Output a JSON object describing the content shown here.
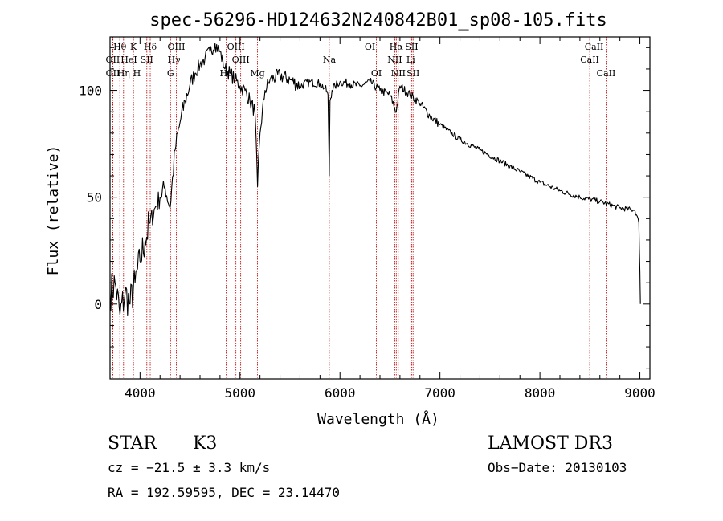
{
  "chart_data": {
    "type": "line",
    "title": "spec-56296-HD124632N240842B01_sp08-105.fits",
    "xlabel": "Wavelength (Å)",
    "ylabel": "Flux (relative)",
    "xlim": [
      3700,
      9100
    ],
    "ylim": [
      -35,
      125
    ],
    "x_ticks": [
      4000,
      5000,
      6000,
      7000,
      8000,
      9000
    ],
    "y_ticks": [
      0,
      50,
      100
    ],
    "x_tick_labels": [
      "4000",
      "5000",
      "6000",
      "7000",
      "8000",
      "9000"
    ],
    "y_tick_labels": [
      "0",
      "50",
      "100"
    ],
    "series": [
      {
        "name": "flux",
        "x": [
          3700,
          3750,
          3800,
          3850,
          3900,
          3950,
          4000,
          4050,
          4100,
          4150,
          4200,
          4250,
          4300,
          4350,
          4400,
          4450,
          4500,
          4550,
          4600,
          4650,
          4700,
          4750,
          4800,
          4850,
          4900,
          4950,
          5000,
          5050,
          5100,
          5150,
          5175,
          5200,
          5250,
          5300,
          5400,
          5500,
          5600,
          5700,
          5800,
          5850,
          5880,
          5893,
          5900,
          5920,
          5950,
          6000,
          6100,
          6200,
          6300,
          6400,
          6500,
          6563,
          6600,
          6700,
          6800,
          6900,
          7000,
          7200,
          7400,
          7600,
          7800,
          8000,
          8200,
          8400,
          8600,
          8800,
          8950,
          8990,
          9000,
          9005
        ],
        "y": [
          5,
          10,
          -5,
          5,
          0,
          10,
          20,
          30,
          38,
          45,
          50,
          55,
          45,
          72,
          85,
          95,
          103,
          108,
          112,
          115,
          118,
          122,
          118,
          110,
          108,
          105,
          102,
          100,
          95,
          90,
          55,
          80,
          100,
          105,
          107,
          105,
          102,
          104,
          103,
          101,
          98,
          60,
          95,
          100,
          102,
          104,
          103,
          102,
          104,
          100,
          98,
          90,
          102,
          98,
          94,
          88,
          84,
          77,
          72,
          67,
          62,
          57,
          53,
          50,
          48,
          45,
          44,
          38,
          15,
          0
        ]
      }
    ],
    "line_markers": [
      {
        "label": "Hθ",
        "wavelength": 3798,
        "row": 1
      },
      {
        "label": "Hη",
        "wavelength": 3835,
        "row": 3
      },
      {
        "label": "OII",
        "wavelength": 3727,
        "row": 2
      },
      {
        "label": "OII",
        "wavelength": 3728,
        "row": 3
      },
      {
        "label": "HeI",
        "wavelength": 3889,
        "row": 2
      },
      {
        "label": "K",
        "wavelength": 3934,
        "row": 1
      },
      {
        "label": "SII",
        "wavelength": 4068,
        "row": 2
      },
      {
        "label": "H",
        "wavelength": 3969,
        "row": 3
      },
      {
        "label": "Hδ",
        "wavelength": 4102,
        "row": 1
      },
      {
        "label": "OIII",
        "wavelength": 4363,
        "row": 1
      },
      {
        "label": "Hγ",
        "wavelength": 4340,
        "row": 2
      },
      {
        "label": "G",
        "wavelength": 4305,
        "row": 3
      },
      {
        "label": "OIII",
        "wavelength": 4959,
        "row": 1
      },
      {
        "label": "OIII",
        "wavelength": 5007,
        "row": 2
      },
      {
        "label": "Hβ",
        "wavelength": 4861,
        "row": 3
      },
      {
        "label": "Mg",
        "wavelength": 5175,
        "row": 3
      },
      {
        "label": "Na",
        "wavelength": 5893,
        "row": 2
      },
      {
        "label": "OI",
        "wavelength": 6300,
        "row": 1
      },
      {
        "label": "OI",
        "wavelength": 6364,
        "row": 3
      },
      {
        "label": "Hα",
        "wavelength": 6563,
        "row": 1
      },
      {
        "label": "NII",
        "wavelength": 6548,
        "row": 2
      },
      {
        "label": "NII",
        "wavelength": 6583,
        "row": 3
      },
      {
        "label": "SII",
        "wavelength": 6717,
        "row": 1
      },
      {
        "label": "Li",
        "wavelength": 6708,
        "row": 2
      },
      {
        "label": "SII",
        "wavelength": 6731,
        "row": 3
      },
      {
        "label": "CaII",
        "wavelength": 8542,
        "row": 1
      },
      {
        "label": "CaII",
        "wavelength": 8498,
        "row": 2
      },
      {
        "label": "CaII",
        "wavelength": 8662,
        "row": 3
      }
    ]
  },
  "info": {
    "class_label": "STAR",
    "subclass": "K3",
    "redshift": "cz = −21.5 ± 3.3 km/s",
    "coords": "RA = 192.59595, DEC =  23.14470",
    "survey": "LAMOST DR3",
    "obs_date": "Obs−Date: 20130103"
  },
  "colors": {
    "line": "#000000",
    "marker": "#c00000",
    "background": "#ffffff"
  }
}
